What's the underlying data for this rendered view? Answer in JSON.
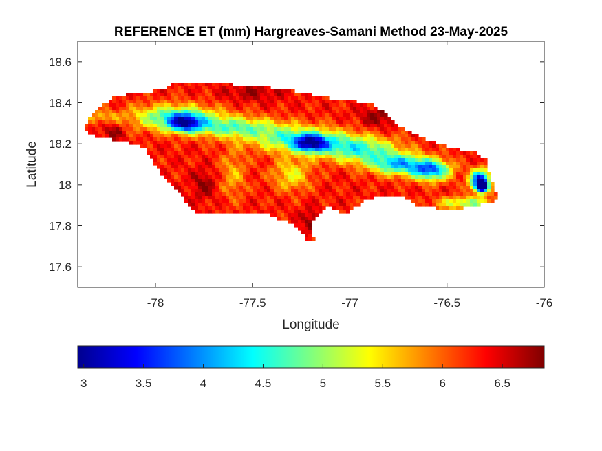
{
  "chart_data": {
    "type": "heatmap",
    "title": "REFERENCE ET (mm) Hargreaves-Samani Method  23-May-2025",
    "xlabel": "Longitude",
    "ylabel": "Latitude",
    "xlim": [
      -78.4,
      -76
    ],
    "ylim": [
      17.5,
      18.7
    ],
    "xticks": [
      -78,
      -77.5,
      -77,
      -76.5,
      -76
    ],
    "xtick_labels": [
      "-78",
      "-77.5",
      "-77",
      "-76.5",
      "-76"
    ],
    "yticks": [
      17.6,
      17.8,
      18,
      18.2,
      18.4,
      18.6
    ],
    "ytick_labels": [
      "17.6",
      "17.8",
      "18",
      "18.2",
      "18.4",
      "18.6"
    ],
    "colormap": "jet",
    "colorbar": {
      "range": [
        2.95,
        6.85
      ],
      "ticks": [
        3,
        3.5,
        4,
        4.5,
        5,
        5.5,
        6,
        6.5
      ],
      "tick_labels": [
        "3",
        "3.5",
        "4",
        "4.5",
        "5",
        "5.5",
        "6",
        "6.5"
      ],
      "location": "bottom"
    },
    "grid": false,
    "outline": [
      [
        -78.37,
        18.27
      ],
      [
        -78.33,
        18.34
      ],
      [
        -78.3,
        18.36
      ],
      [
        -78.27,
        18.39
      ],
      [
        -78.22,
        18.43
      ],
      [
        -78.15,
        18.44
      ],
      [
        -78.1,
        18.45
      ],
      [
        -78.06,
        18.45
      ],
      [
        -78.0,
        18.46
      ],
      [
        -77.95,
        18.47
      ],
      [
        -77.92,
        18.49
      ],
      [
        -77.8,
        18.5
      ],
      [
        -77.6,
        18.49
      ],
      [
        -77.45,
        18.48
      ],
      [
        -77.3,
        18.46
      ],
      [
        -77.15,
        18.43
      ],
      [
        -77.0,
        18.41
      ],
      [
        -76.9,
        18.4
      ],
      [
        -76.83,
        18.36
      ],
      [
        -76.75,
        18.29
      ],
      [
        -76.65,
        18.24
      ],
      [
        -76.55,
        18.2
      ],
      [
        -76.43,
        18.17
      ],
      [
        -76.35,
        18.16
      ],
      [
        -76.3,
        18.12
      ],
      [
        -76.28,
        18.05
      ],
      [
        -76.26,
        17.99
      ],
      [
        -76.24,
        17.94
      ],
      [
        -76.26,
        17.92
      ],
      [
        -76.35,
        17.9
      ],
      [
        -76.45,
        17.88
      ],
      [
        -76.52,
        17.88
      ],
      [
        -76.58,
        17.89
      ],
      [
        -76.65,
        17.9
      ],
      [
        -76.75,
        17.95
      ],
      [
        -76.85,
        17.95
      ],
      [
        -76.93,
        17.92
      ],
      [
        -77.0,
        17.87
      ],
      [
        -77.05,
        17.87
      ],
      [
        -77.12,
        17.9
      ],
      [
        -77.17,
        17.85
      ],
      [
        -77.2,
        17.8
      ],
      [
        -77.2,
        17.75
      ],
      [
        -77.17,
        17.73
      ],
      [
        -77.22,
        17.72
      ],
      [
        -77.25,
        17.77
      ],
      [
        -77.28,
        17.8
      ],
      [
        -77.35,
        17.83
      ],
      [
        -77.42,
        17.86
      ],
      [
        -77.5,
        17.87
      ],
      [
        -77.6,
        17.87
      ],
      [
        -77.7,
        17.86
      ],
      [
        -77.78,
        17.86
      ],
      [
        -77.82,
        17.88
      ],
      [
        -77.85,
        17.93
      ],
      [
        -77.9,
        17.98
      ],
      [
        -77.95,
        18.03
      ],
      [
        -78.0,
        18.1
      ],
      [
        -78.05,
        18.17
      ],
      [
        -78.1,
        18.2
      ],
      [
        -78.2,
        18.22
      ],
      [
        -78.3,
        18.23
      ],
      [
        -78.37,
        18.27
      ]
    ],
    "surface": {
      "base": 6.3,
      "features": [
        {
          "lon": -77.9,
          "lat": 18.33,
          "value": 4.6,
          "sx": 0.22,
          "sy": 0.06
        },
        {
          "lon": -77.85,
          "lat": 18.3,
          "value": 4.3,
          "sx": 0.08,
          "sy": 0.04
        },
        {
          "lon": -77.6,
          "lat": 18.28,
          "value": 4.9,
          "sx": 0.25,
          "sy": 0.05
        },
        {
          "lon": -77.25,
          "lat": 18.22,
          "value": 4.6,
          "sx": 0.25,
          "sy": 0.06
        },
        {
          "lon": -77.2,
          "lat": 18.2,
          "value": 4.3,
          "sx": 0.08,
          "sy": 0.04
        },
        {
          "lon": -76.95,
          "lat": 18.17,
          "value": 4.7,
          "sx": 0.2,
          "sy": 0.06
        },
        {
          "lon": -76.75,
          "lat": 18.1,
          "value": 4.3,
          "sx": 0.15,
          "sy": 0.05
        },
        {
          "lon": -76.58,
          "lat": 18.07,
          "value": 4.1,
          "sx": 0.1,
          "sy": 0.05
        },
        {
          "lon": -76.33,
          "lat": 18.02,
          "value": 3.2,
          "sx": 0.05,
          "sy": 0.05
        },
        {
          "lon": -76.32,
          "lat": 17.99,
          "value": 2.95,
          "sx": 0.025,
          "sy": 0.025
        },
        {
          "lon": -77.6,
          "lat": 18.05,
          "value": 5.7,
          "sx": 0.07,
          "sy": 0.12
        },
        {
          "lon": -77.3,
          "lat": 18.05,
          "value": 5.4,
          "sx": 0.1,
          "sy": 0.08
        },
        {
          "lon": -76.4,
          "lat": 17.91,
          "value": 5.0,
          "sx": 0.15,
          "sy": 0.03
        },
        {
          "lon": -78.28,
          "lat": 18.33,
          "value": 5.7,
          "sx": 0.08,
          "sy": 0.03
        },
        {
          "lon": -77.5,
          "lat": 18.45,
          "value": 6.7,
          "sx": 0.15,
          "sy": 0.04
        },
        {
          "lon": -78.22,
          "lat": 18.26,
          "value": 6.8,
          "sx": 0.06,
          "sy": 0.04
        },
        {
          "lon": -77.75,
          "lat": 18.0,
          "value": 6.8,
          "sx": 0.06,
          "sy": 0.07
        },
        {
          "lon": -77.2,
          "lat": 17.83,
          "value": 6.8,
          "sx": 0.05,
          "sy": 0.05
        },
        {
          "lon": -76.85,
          "lat": 18.33,
          "value": 6.8,
          "sx": 0.1,
          "sy": 0.05
        }
      ]
    }
  }
}
